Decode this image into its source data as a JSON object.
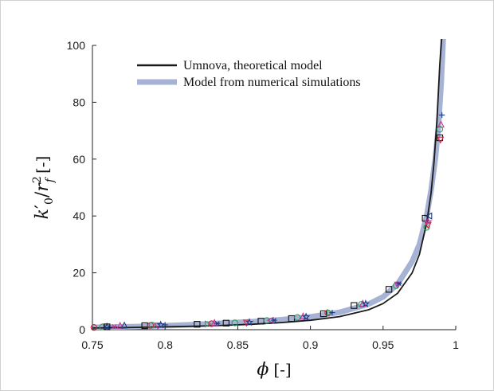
{
  "chart_data": {
    "type": "scatter",
    "xlabel": "φ [-]",
    "ylabel": "k'0/r2f [-]",
    "ylabel_parts": {
      "k": "k",
      "prime": "′",
      "sub0": "0",
      "slash": "/",
      "r": "r",
      "sup2": "2",
      "subf": "f",
      "unit": "[-]"
    },
    "xlabel_parts": {
      "phi": "ϕ",
      "unit": "[-]"
    },
    "xlim": [
      0.75,
      1.0
    ],
    "ylim": [
      0,
      100
    ],
    "xticks": [
      "0.75",
      "0.8",
      "0.85",
      "0.9",
      "0.95",
      "1"
    ],
    "yticks": [
      "0",
      "20",
      "40",
      "60",
      "80",
      "100"
    ],
    "xtick_values": [
      0.75,
      0.8,
      0.85,
      0.9,
      0.95,
      1.0
    ],
    "ytick_values": [
      0,
      20,
      40,
      60,
      80,
      100
    ],
    "grid": false,
    "legend_position": "top-center",
    "series": [
      {
        "name": "Umnova, theoretical model",
        "kind": "line",
        "color": "#1a1a1a",
        "x": [
          0.75,
          0.78,
          0.8,
          0.82,
          0.84,
          0.86,
          0.88,
          0.9,
          0.92,
          0.94,
          0.95,
          0.96,
          0.97,
          0.975,
          0.98,
          0.983,
          0.985,
          0.987,
          0.989,
          0.9905
        ],
        "y": [
          0.6,
          0.8,
          1.0,
          1.2,
          1.5,
          1.9,
          2.5,
          3.3,
          4.6,
          7.0,
          9.2,
          12.8,
          20.0,
          26.5,
          37.5,
          48.0,
          58.5,
          73.0,
          93.0,
          104.0
        ]
      },
      {
        "name": "Model from numerical simulations",
        "kind": "line",
        "color": "#a7b3d4",
        "x": [
          0.75,
          0.78,
          0.8,
          0.82,
          0.84,
          0.86,
          0.88,
          0.9,
          0.92,
          0.94,
          0.95,
          0.96,
          0.97,
          0.975,
          0.98,
          0.983,
          0.986,
          0.988,
          0.99,
          0.9915
        ],
        "y": [
          0.8,
          1.1,
          1.4,
          1.8,
          2.3,
          2.8,
          3.5,
          4.5,
          6.1,
          9.0,
          11.5,
          16.0,
          24.0,
          30.0,
          40.0,
          49.0,
          60.5,
          71.0,
          87.0,
          104.0
        ]
      }
    ],
    "markers": [
      {
        "sym": "circle",
        "color": "#d4233d",
        "x": 0.751,
        "y": 0.8
      },
      {
        "sym": "circle",
        "color": "#2f9a58",
        "x": 0.757,
        "y": 1.0
      },
      {
        "sym": "star",
        "color": "#1b3a8a",
        "x": 0.76,
        "y": 1.0
      },
      {
        "sym": "square",
        "color": "#111111",
        "x": 0.76,
        "y": 1.0
      },
      {
        "sym": "asterisk",
        "color": "#c0399b",
        "x": 0.765,
        "y": 1.1
      },
      {
        "sym": "triangle-up",
        "color": "#c0399b",
        "x": 0.769,
        "y": 1.2
      },
      {
        "sym": "triangle-up",
        "color": "#1b3a8a",
        "x": 0.772,
        "y": 1.3
      },
      {
        "sym": "square",
        "color": "#111111",
        "x": 0.786,
        "y": 1.4
      },
      {
        "sym": "circle",
        "color": "#d4233d",
        "x": 0.79,
        "y": 1.5
      },
      {
        "sym": "circle",
        "color": "#2f9a58",
        "x": 0.791,
        "y": 1.6
      },
      {
        "sym": "triangle-down",
        "color": "#c0399b",
        "x": 0.795,
        "y": 1.6
      },
      {
        "sym": "star",
        "color": "#1b3a8a",
        "x": 0.797,
        "y": 1.7
      },
      {
        "sym": "plus",
        "color": "#1b3a8a",
        "x": 0.8,
        "y": 1.7
      },
      {
        "sym": "square",
        "color": "#111111",
        "x": 0.822,
        "y": 1.9
      },
      {
        "sym": "triangle-right",
        "color": "#2f9a58",
        "x": 0.829,
        "y": 2.0
      },
      {
        "sym": "circle",
        "color": "#d4233d",
        "x": 0.832,
        "y": 2.1
      },
      {
        "sym": "triangle-up",
        "color": "#c0399b",
        "x": 0.834,
        "y": 2.2
      },
      {
        "sym": "asterisk",
        "color": "#1b3a8a",
        "x": 0.836,
        "y": 2.2
      },
      {
        "sym": "square",
        "color": "#111111",
        "x": 0.842,
        "y": 2.3
      },
      {
        "sym": "circle",
        "color": "#2f9a58",
        "x": 0.848,
        "y": 2.4
      },
      {
        "sym": "triangle-down",
        "color": "#d4233d",
        "x": 0.856,
        "y": 2.6
      },
      {
        "sym": "star",
        "color": "#1b3a8a",
        "x": 0.858,
        "y": 2.6
      },
      {
        "sym": "square",
        "color": "#111111",
        "x": 0.866,
        "y": 3.0
      },
      {
        "sym": "circle",
        "color": "#2f9a58",
        "x": 0.87,
        "y": 3.2
      },
      {
        "sym": "triangle-left",
        "color": "#c0399b",
        "x": 0.873,
        "y": 3.3
      },
      {
        "sym": "asterisk",
        "color": "#1b3a8a",
        "x": 0.875,
        "y": 3.3
      },
      {
        "sym": "square",
        "color": "#111111",
        "x": 0.887,
        "y": 3.9
      },
      {
        "sym": "circle",
        "color": "#2f9a58",
        "x": 0.891,
        "y": 4.3
      },
      {
        "sym": "triangle-up",
        "color": "#c0399b",
        "x": 0.895,
        "y": 4.5
      },
      {
        "sym": "star",
        "color": "#1b3a8a",
        "x": 0.897,
        "y": 4.5
      },
      {
        "sym": "square",
        "color": "#111111",
        "x": 0.909,
        "y": 5.6
      },
      {
        "sym": "circle",
        "color": "#d4233d",
        "x": 0.912,
        "y": 5.9
      },
      {
        "sym": "triangle-right",
        "color": "#2f9a58",
        "x": 0.913,
        "y": 6.0
      },
      {
        "sym": "plus",
        "color": "#1b3a8a",
        "x": 0.915,
        "y": 6.0
      },
      {
        "sym": "square",
        "color": "#111111",
        "x": 0.93,
        "y": 8.5
      },
      {
        "sym": "circle",
        "color": "#2f9a58",
        "x": 0.935,
        "y": 8.9
      },
      {
        "sym": "triangle-up",
        "color": "#c0399b",
        "x": 0.936,
        "y": 9.0
      },
      {
        "sym": "star",
        "color": "#1b3a8a",
        "x": 0.938,
        "y": 9.1
      },
      {
        "sym": "square",
        "color": "#111111",
        "x": 0.954,
        "y": 14.2
      },
      {
        "sym": "circle",
        "color": "#2f9a58",
        "x": 0.959,
        "y": 15.5
      },
      {
        "sym": "triangle-down",
        "color": "#c0399b",
        "x": 0.96,
        "y": 16.0
      },
      {
        "sym": "asterisk",
        "color": "#1b3a8a",
        "x": 0.961,
        "y": 16.2
      },
      {
        "sym": "square",
        "color": "#111111",
        "x": 0.979,
        "y": 39.2
      },
      {
        "sym": "triangle-left",
        "color": "#1b3a8a",
        "x": 0.982,
        "y": 40.0
      },
      {
        "sym": "circle",
        "color": "#2f9a58",
        "x": 0.98,
        "y": 36.0
      },
      {
        "sym": "triangle-down",
        "color": "#d4233d",
        "x": 0.981,
        "y": 37.0
      },
      {
        "sym": "star",
        "color": "#c0399b",
        "x": 0.981,
        "y": 38.0
      },
      {
        "sym": "square",
        "color": "#111111",
        "x": 0.989,
        "y": 67.5
      },
      {
        "sym": "circle",
        "color": "#2f9a58",
        "x": 0.989,
        "y": 70.5
      },
      {
        "sym": "triangle-down",
        "color": "#d4233d",
        "x": 0.9895,
        "y": 67.0
      },
      {
        "sym": "triangle-up",
        "color": "#c0399b",
        "x": 0.9898,
        "y": 72.0
      },
      {
        "sym": "plus",
        "color": "#1b3a8a",
        "x": 0.9905,
        "y": 75.5
      }
    ]
  }
}
